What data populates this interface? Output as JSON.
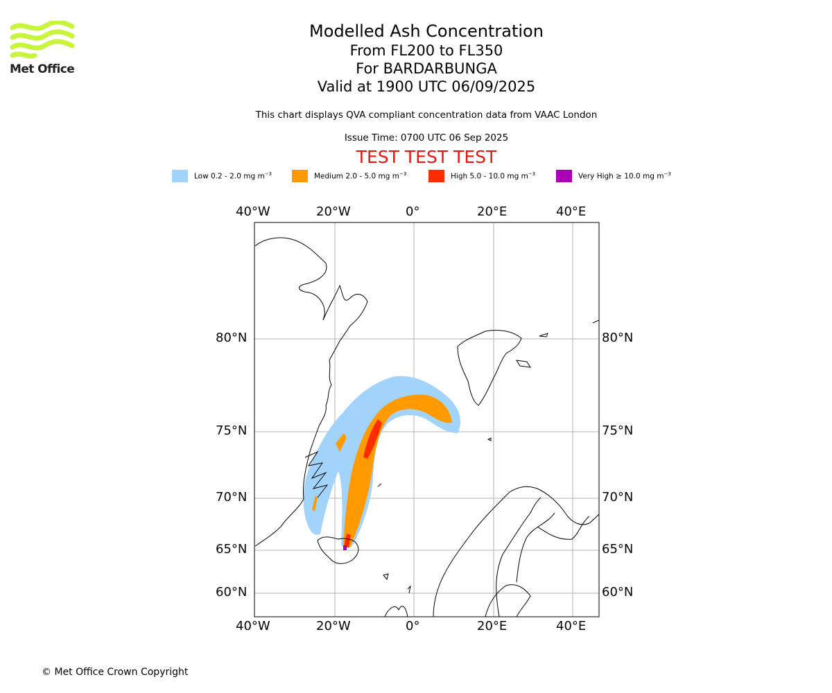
{
  "logo": {
    "brand": "Met Office",
    "accent": "#c8f53c"
  },
  "title": {
    "main": "Modelled Ash Concentration",
    "levels": "From FL200 to FL350",
    "volcano": "For BARDARBUNGA",
    "valid": "Valid at 1900 UTC 06/09/2025"
  },
  "subtitle": "This chart displays QVA compliant concentration data from VAAC London",
  "issue_time": "Issue Time: 0700 UTC 06 Sep 2025",
  "banner": "TEST TEST TEST",
  "legend": [
    {
      "label": "Low 0.2 - 2.0 mg m",
      "color": "#a2d3fb"
    },
    {
      "label": "Medium 2.0 - 5.0 mg m",
      "color": "#ff9a00"
    },
    {
      "label": "High 5.0 - 10.0 mg m",
      "color": "#ff2c00"
    },
    {
      "label": "Very High  ≥  10.0 mg m",
      "color": "#aa00b4"
    }
  ],
  "legend_unit_exp": "−3",
  "map": {
    "lon_labels": [
      "40°W",
      "20°W",
      "0°",
      "20°E",
      "40°E"
    ],
    "lat_labels": [
      "80°N",
      "75°N",
      "70°N",
      "65°N",
      "60°N"
    ],
    "grid": true
  },
  "copyright": "© Met Office Crown Copyright"
}
